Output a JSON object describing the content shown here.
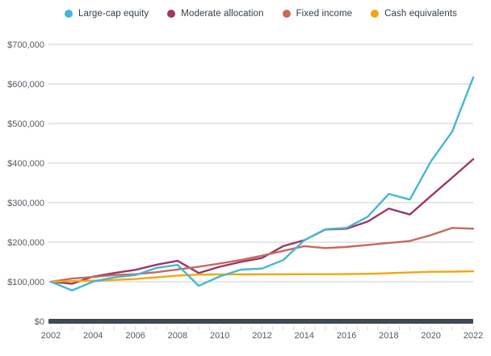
{
  "colors": {
    "background": "#ffffff",
    "grid": "#c9ced2",
    "axis_bar": "#3d4a56",
    "tick": "#d8dadc",
    "axis_text": "#515b64",
    "legend_text": "#333e48"
  },
  "chart_data": {
    "type": "line",
    "title": "",
    "xlabel": "",
    "ylabel": "",
    "grid": true,
    "legend_position": "top",
    "xlim": [
      2002,
      2022
    ],
    "ylim": [
      0,
      700000
    ],
    "x": [
      2002,
      2003,
      2004,
      2005,
      2006,
      2007,
      2008,
      2009,
      2010,
      2011,
      2012,
      2013,
      2014,
      2015,
      2016,
      2017,
      2018,
      2019,
      2020,
      2021,
      2022
    ],
    "x_tick_labels": [
      "2002",
      "2004",
      "2006",
      "2008",
      "2010",
      "2012",
      "2014",
      "2016",
      "2018",
      "2020",
      "2022"
    ],
    "y_ticks": [
      0,
      100000,
      200000,
      300000,
      400000,
      500000,
      600000,
      700000
    ],
    "y_tick_labels": [
      "$0",
      "$100,000",
      "$200,000",
      "$300,000",
      "$400,000",
      "$500,000",
      "$600,000",
      "$700,000"
    ],
    "series": [
      {
        "name": "Large-cap equity",
        "color": "#45b7d3",
        "values": [
          100000,
          78000,
          100300,
          111200,
          116600,
          135000,
          142400,
          89700,
          113500,
          130600,
          133300,
          154700,
          204800,
          232800,
          236000,
          264200,
          321900,
          307800,
          404700,
          479200,
          616800
        ]
      },
      {
        "name": "Moderate allocation",
        "color": "#9c3766",
        "values": [
          100000,
          95000,
          113000,
          122000,
          130000,
          143000,
          153000,
          122000,
          138000,
          150000,
          160000,
          190000,
          205000,
          232000,
          234000,
          252000,
          285000,
          270000,
          317000,
          363000,
          410000
        ]
      },
      {
        "name": "Fixed income",
        "color": "#c66a5d",
        "values": [
          100000,
          108000,
          112000,
          117000,
          119000,
          124000,
          131000,
          138000,
          146000,
          155000,
          166000,
          178000,
          190000,
          185000,
          188000,
          193000,
          198000,
          203000,
          218000,
          236000,
          234000
        ]
      },
      {
        "name": "Cash equivalents",
        "color": "#f2a70d",
        "values": [
          100000,
          101700,
          102700,
          104500,
          107000,
          111000,
          115500,
          118000,
          118400,
          118600,
          118700,
          118800,
          118900,
          119000,
          119300,
          120000,
          121500,
          123500,
          125200,
          125500,
          126500
        ]
      }
    ]
  }
}
